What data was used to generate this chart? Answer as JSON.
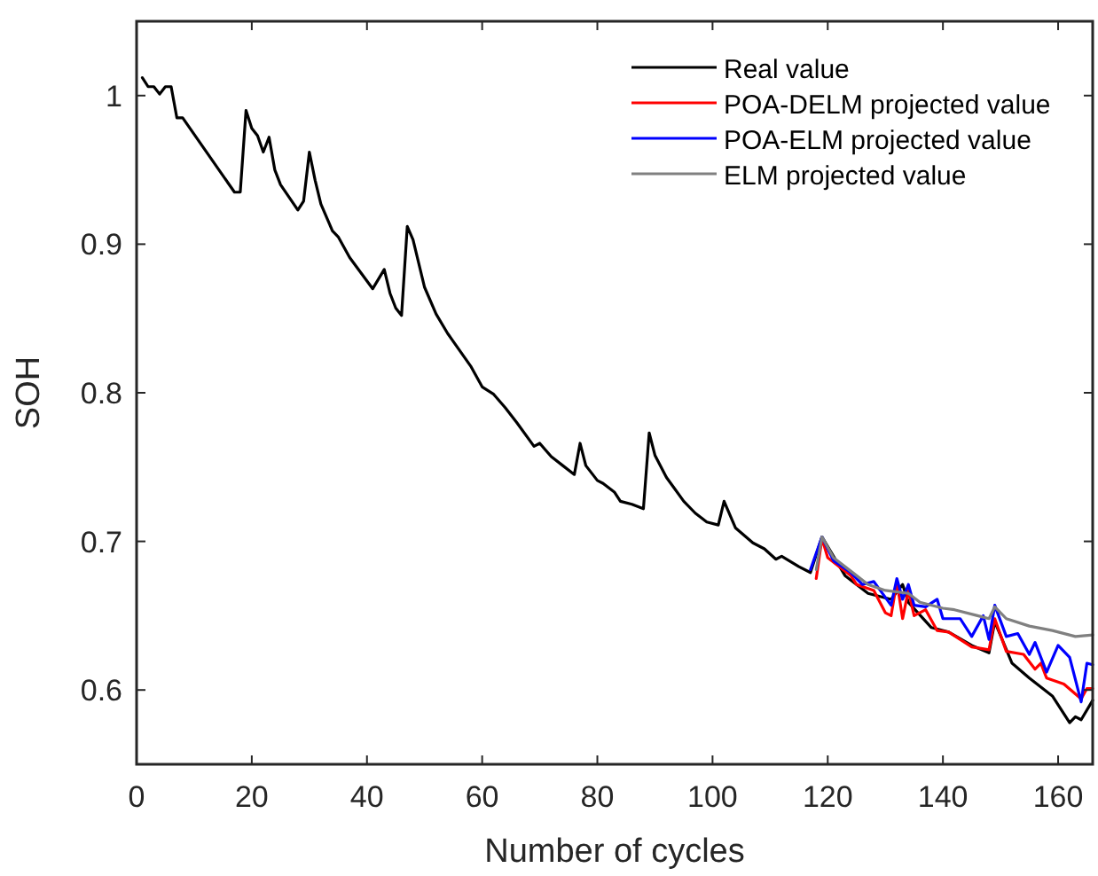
{
  "chart_data": {
    "type": "line",
    "xlabel": "Number of cycles",
    "ylabel": "SOH",
    "xlim": [
      0,
      166
    ],
    "ylim": [
      0.55,
      1.05
    ],
    "xticks": [
      0,
      20,
      40,
      60,
      80,
      100,
      120,
      140,
      160
    ],
    "yticks": [
      0.6,
      0.7,
      0.8,
      0.9,
      1
    ],
    "grid": false,
    "legend": "top right",
    "marker": "none",
    "line_style": "solid",
    "series": [
      {
        "name": "Real value",
        "color": "#000000",
        "x": [
          1,
          2,
          3,
          4,
          5,
          6,
          7,
          8,
          17,
          18,
          19,
          20,
          21,
          22,
          23,
          24,
          25,
          28,
          29,
          30,
          31,
          32,
          34,
          35,
          37,
          41,
          43,
          44,
          45,
          46,
          47,
          48,
          50,
          52,
          54,
          58,
          60,
          62,
          64,
          66,
          69,
          70,
          72,
          74,
          76,
          77,
          78,
          80,
          81,
          83,
          84,
          86,
          88,
          89,
          90,
          92,
          95,
          97,
          99,
          101,
          102,
          104,
          107,
          109,
          111,
          112,
          115,
          117,
          119,
          123,
          127,
          131,
          133,
          134,
          138,
          141,
          145,
          148,
          149,
          152,
          155,
          159,
          162,
          163,
          164,
          166
        ],
        "values": [
          1.012,
          1.006,
          1.006,
          1.001,
          1.006,
          1.006,
          0.985,
          0.985,
          0.935,
          0.935,
          0.99,
          0.978,
          0.973,
          0.962,
          0.972,
          0.95,
          0.94,
          0.923,
          0.929,
          0.962,
          0.943,
          0.927,
          0.909,
          0.905,
          0.891,
          0.87,
          0.883,
          0.867,
          0.857,
          0.852,
          0.912,
          0.903,
          0.871,
          0.853,
          0.84,
          0.818,
          0.804,
          0.799,
          0.79,
          0.78,
          0.764,
          0.766,
          0.757,
          0.751,
          0.745,
          0.766,
          0.751,
          0.741,
          0.739,
          0.733,
          0.727,
          0.725,
          0.722,
          0.773,
          0.758,
          0.743,
          0.727,
          0.719,
          0.713,
          0.711,
          0.727,
          0.709,
          0.699,
          0.695,
          0.688,
          0.69,
          0.683,
          0.679,
          0.703,
          0.677,
          0.665,
          0.661,
          0.671,
          0.659,
          0.642,
          0.639,
          0.63,
          0.625,
          0.646,
          0.618,
          0.608,
          0.596,
          0.578,
          0.582,
          0.58,
          0.593
        ]
      },
      {
        "name": "POA-DELM projected value",
        "color": "#ff0000",
        "x": [
          118,
          119,
          120,
          124,
          125,
          128,
          130,
          131,
          132,
          133,
          134,
          135,
          137,
          139,
          141,
          145,
          148,
          149,
          151,
          154,
          156,
          157,
          158,
          161,
          164,
          165,
          166
        ],
        "values": [
          0.675,
          0.702,
          0.689,
          0.677,
          0.671,
          0.667,
          0.652,
          0.65,
          0.673,
          0.648,
          0.667,
          0.65,
          0.654,
          0.64,
          0.639,
          0.629,
          0.627,
          0.648,
          0.626,
          0.624,
          0.614,
          0.618,
          0.608,
          0.604,
          0.594,
          0.601,
          0.601
        ]
      },
      {
        "name": "POA-ELM projected value",
        "color": "#0000ff",
        "x": [
          117,
          119,
          121,
          124,
          126,
          128,
          131,
          132,
          133,
          134,
          135,
          137,
          139,
          140,
          143,
          145,
          147,
          148,
          149,
          151,
          153,
          155,
          156,
          158,
          160,
          162,
          164,
          165,
          166
        ],
        "values": [
          0.681,
          0.703,
          0.687,
          0.679,
          0.671,
          0.673,
          0.657,
          0.675,
          0.661,
          0.671,
          0.657,
          0.656,
          0.661,
          0.648,
          0.648,
          0.636,
          0.65,
          0.634,
          0.657,
          0.636,
          0.638,
          0.624,
          0.632,
          0.612,
          0.63,
          0.622,
          0.592,
          0.618,
          0.617
        ]
      },
      {
        "name": "ELM projected value",
        "color": "#808080",
        "x": [
          118,
          119,
          121,
          124,
          127,
          130,
          134,
          136,
          140,
          142,
          146,
          148,
          149,
          151,
          155,
          159,
          163,
          166
        ],
        "values": [
          0.681,
          0.703,
          0.689,
          0.68,
          0.671,
          0.667,
          0.665,
          0.659,
          0.655,
          0.654,
          0.65,
          0.648,
          0.656,
          0.648,
          0.643,
          0.64,
          0.636,
          0.637
        ]
      }
    ]
  }
}
